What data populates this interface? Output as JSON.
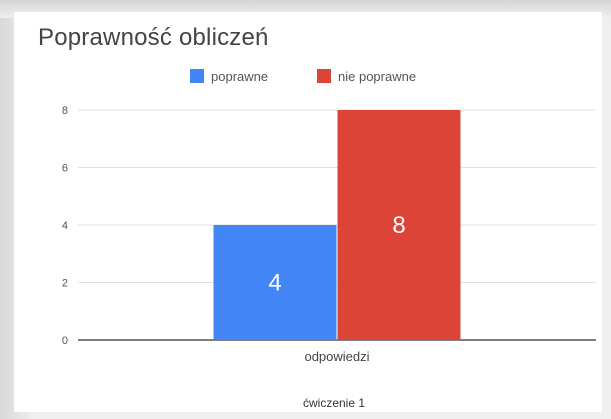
{
  "chart_data": {
    "type": "bar",
    "title": "Poprawność obliczeń",
    "categories": [
      "odpowiedzi"
    ],
    "series": [
      {
        "name": "poprawne",
        "values": [
          4
        ],
        "color": "#4285f4"
      },
      {
        "name": "nie poprawne",
        "values": [
          8
        ],
        "color": "#db4437"
      }
    ],
    "xlabel": "ćwiczenie 1",
    "ylabel": "",
    "ylim": [
      0,
      8
    ],
    "yticks": [
      0,
      2,
      4,
      6,
      8
    ],
    "grid": true,
    "legend": "top",
    "data_labels": true
  }
}
